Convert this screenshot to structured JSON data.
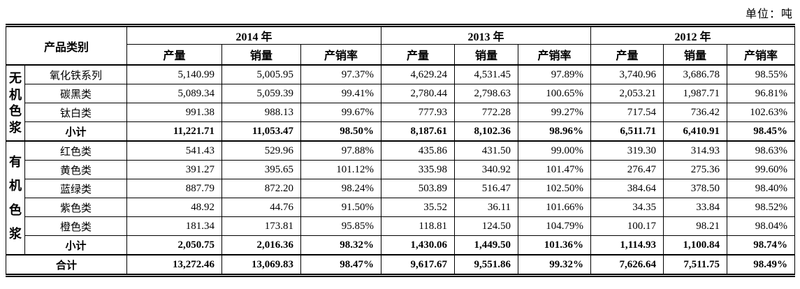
{
  "unit_label": "单位：吨",
  "table": {
    "product_category_header": "产品类别",
    "year_groups": [
      {
        "year": "2014 年",
        "columns": [
          "产量",
          "销量",
          "产销率"
        ]
      },
      {
        "year": "2013 年",
        "columns": [
          "产量",
          "销量",
          "产销率"
        ]
      },
      {
        "year": "2012 年",
        "columns": [
          "产量",
          "销量",
          "产销率"
        ]
      }
    ],
    "groups": [
      {
        "name": "无机色浆",
        "rows": [
          {
            "label": "氧化铁系列",
            "bold": false,
            "values": [
              "5,140.99",
              "5,005.95",
              "97.37%",
              "4,629.24",
              "4,531.45",
              "97.89%",
              "3,740.96",
              "3,686.78",
              "98.55%"
            ]
          },
          {
            "label": "碳黑类",
            "bold": false,
            "values": [
              "5,089.34",
              "5,059.39",
              "99.41%",
              "2,780.44",
              "2,798.63",
              "100.65%",
              "2,053.21",
              "1,987.71",
              "96.81%"
            ]
          },
          {
            "label": "钛白类",
            "bold": false,
            "values": [
              "991.38",
              "988.13",
              "99.67%",
              "777.93",
              "772.28",
              "99.27%",
              "717.54",
              "736.42",
              "102.63%"
            ]
          },
          {
            "label": "小计",
            "bold": true,
            "values": [
              "11,221.71",
              "11,053.47",
              "98.50%",
              "8,187.61",
              "8,102.36",
              "98.96%",
              "6,511.71",
              "6,410.91",
              "98.45%"
            ]
          }
        ]
      },
      {
        "name": "有机色浆",
        "rows": [
          {
            "label": "红色类",
            "bold": false,
            "values": [
              "541.43",
              "529.96",
              "97.88%",
              "435.86",
              "431.50",
              "99.00%",
              "319.30",
              "314.93",
              "98.63%"
            ]
          },
          {
            "label": "黄色类",
            "bold": false,
            "values": [
              "391.27",
              "395.65",
              "101.12%",
              "335.98",
              "340.92",
              "101.47%",
              "276.47",
              "275.36",
              "99.60%"
            ]
          },
          {
            "label": "蓝绿类",
            "bold": false,
            "values": [
              "887.79",
              "872.20",
              "98.24%",
              "503.89",
              "516.47",
              "102.50%",
              "384.64",
              "378.50",
              "98.40%"
            ]
          },
          {
            "label": "紫色类",
            "bold": false,
            "values": [
              "48.92",
              "44.76",
              "91.50%",
              "35.52",
              "36.11",
              "101.66%",
              "34.35",
              "33.84",
              "98.52%"
            ]
          },
          {
            "label": "橙色类",
            "bold": false,
            "values": [
              "181.34",
              "173.81",
              "95.85%",
              "118.81",
              "124.50",
              "104.79%",
              "100.17",
              "98.21",
              "98.04%"
            ]
          },
          {
            "label": "小计",
            "bold": true,
            "values": [
              "2,050.75",
              "2,016.36",
              "98.32%",
              "1,430.06",
              "1,449.50",
              "101.36%",
              "1,114.93",
              "1,100.84",
              "98.74%"
            ]
          }
        ]
      }
    ],
    "total_row": {
      "label": "合计",
      "bold": true,
      "values": [
        "13,272.46",
        "13,069.83",
        "98.47%",
        "9,617.67",
        "9,551.86",
        "99.32%",
        "7,626.64",
        "7,511.75",
        "98.49%"
      ]
    }
  }
}
